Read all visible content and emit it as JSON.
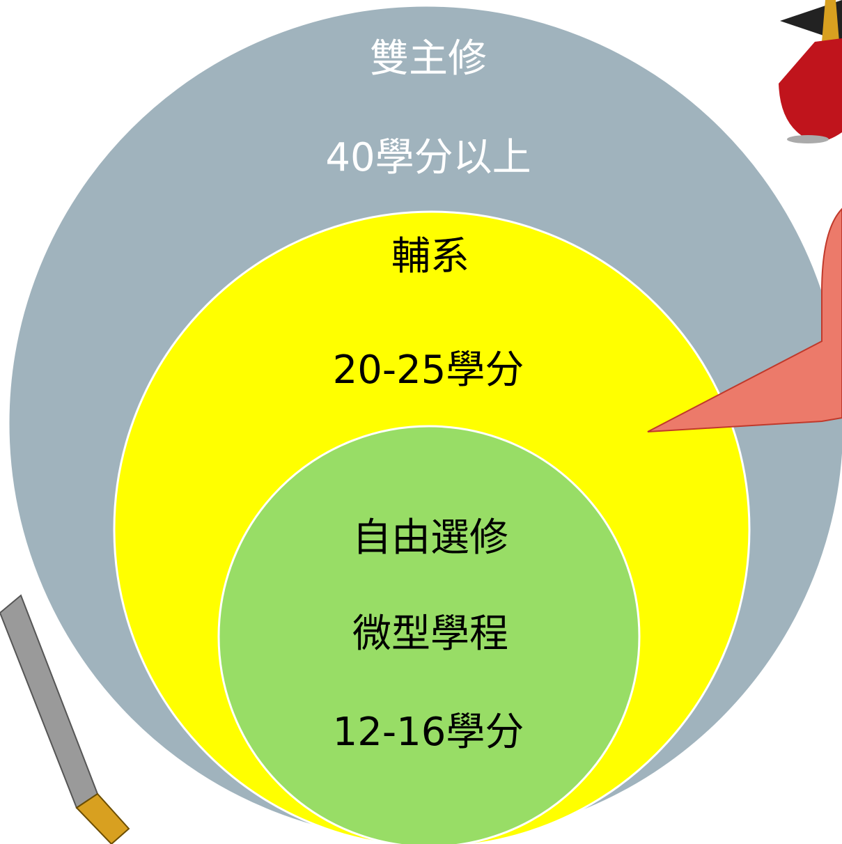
{
  "circles": [
    {
      "lines": [
        "雙主修",
        "40學分以上"
      ]
    },
    {
      "lines": [
        "輔系",
        "20-25學分"
      ]
    },
    {
      "lines": [
        "自由選修",
        "微型學程",
        "12-16學分"
      ]
    }
  ]
}
